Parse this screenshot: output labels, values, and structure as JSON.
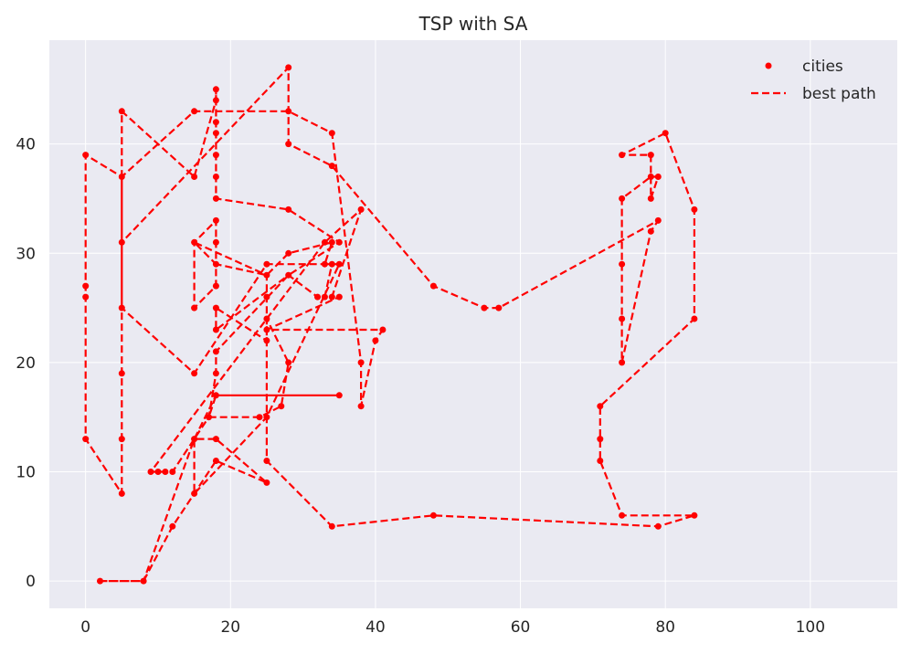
{
  "chart_data": {
    "type": "line",
    "title": "TSP with SA",
    "xlabel": "",
    "ylabel": "",
    "xlim": [
      -5,
      112
    ],
    "ylim": [
      -2.5,
      49.5
    ],
    "x_ticks": [
      0,
      20,
      40,
      60,
      80,
      100
    ],
    "y_ticks": [
      0,
      10,
      20,
      30,
      40
    ],
    "grid": true,
    "legend": {
      "position": "top-right",
      "entries": [
        "cities",
        "best path"
      ]
    },
    "colors": {
      "series": "#ff0000",
      "plot_background": "#eaeaf2",
      "grid": "#ffffff"
    },
    "series": [
      {
        "name": "best path",
        "style": "dashed",
        "marker": "dot",
        "points": [
          [
            2,
            0
          ],
          [
            8,
            0
          ],
          [
            12,
            5
          ],
          [
            15,
            8
          ],
          [
            18,
            11
          ],
          [
            25,
            9
          ],
          [
            18,
            13
          ],
          [
            15,
            13
          ],
          [
            15,
            8
          ],
          [
            25,
            15
          ],
          [
            35,
            29
          ],
          [
            25,
            29
          ],
          [
            15,
            19
          ],
          [
            5,
            25
          ],
          [
            5,
            31
          ],
          [
            5,
            37
          ],
          [
            0,
            39
          ],
          [
            0,
            27
          ],
          [
            0,
            26
          ],
          [
            0,
            13
          ],
          [
            5,
            8
          ],
          [
            5,
            13
          ],
          [
            5,
            19
          ],
          [
            5,
            25
          ],
          [
            5,
            37
          ],
          [
            5,
            43
          ],
          [
            15,
            37
          ],
          [
            18,
            44
          ],
          [
            18,
            45
          ],
          [
            18,
            42
          ],
          [
            18,
            41
          ],
          [
            18,
            39
          ],
          [
            18,
            37
          ],
          [
            18,
            35
          ],
          [
            28,
            34
          ],
          [
            35,
            31
          ],
          [
            28,
            28
          ],
          [
            18,
            21
          ],
          [
            18,
            19
          ],
          [
            17,
            15
          ],
          [
            12,
            10
          ],
          [
            11,
            10
          ],
          [
            10,
            10
          ],
          [
            9,
            10
          ],
          [
            33,
            31
          ],
          [
            38,
            34
          ],
          [
            34,
            26
          ],
          [
            35,
            26
          ],
          [
            25,
            23
          ],
          [
            41,
            23
          ],
          [
            40,
            22
          ],
          [
            38,
            16
          ],
          [
            38,
            20
          ],
          [
            34,
            41
          ],
          [
            28,
            43
          ],
          [
            15,
            43
          ],
          [
            5,
            37
          ],
          [
            5,
            31
          ],
          [
            28,
            47
          ],
          [
            28,
            43
          ],
          [
            28,
            40
          ],
          [
            34,
            38
          ],
          [
            48,
            27
          ],
          [
            55,
            25
          ],
          [
            57,
            25
          ],
          [
            79,
            33
          ],
          [
            78,
            32
          ],
          [
            74,
            20
          ],
          [
            74,
            24
          ],
          [
            74,
            29
          ],
          [
            74,
            35
          ],
          [
            78,
            37
          ],
          [
            79,
            37
          ],
          [
            78,
            35
          ],
          [
            78,
            39
          ],
          [
            74,
            39
          ],
          [
            80,
            41
          ],
          [
            84,
            34
          ],
          [
            84,
            24
          ],
          [
            71,
            16
          ],
          [
            71,
            13
          ],
          [
            71,
            11
          ],
          [
            74,
            6
          ],
          [
            84,
            6
          ],
          [
            79,
            5
          ],
          [
            48,
            6
          ],
          [
            34,
            5
          ],
          [
            25,
            11
          ],
          [
            25,
            26
          ],
          [
            25,
            28
          ],
          [
            15,
            31
          ],
          [
            18,
            29
          ],
          [
            18,
            27
          ],
          [
            15,
            25
          ],
          [
            15,
            31
          ],
          [
            18,
            33
          ],
          [
            18,
            31
          ],
          [
            18,
            29
          ],
          [
            25,
            28
          ],
          [
            28,
            30
          ],
          [
            34,
            31
          ],
          [
            33,
            29
          ],
          [
            34,
            29
          ],
          [
            33,
            26
          ],
          [
            32,
            26
          ],
          [
            28,
            28
          ],
          [
            18,
            23
          ],
          [
            18,
            25
          ],
          [
            25,
            22
          ],
          [
            25,
            24
          ],
          [
            28,
            20
          ],
          [
            27,
            16
          ],
          [
            24,
            15
          ],
          [
            17,
            15
          ],
          [
            18,
            17
          ],
          [
            35,
            17
          ],
          [
            18,
            17
          ],
          [
            15,
            13
          ],
          [
            8,
            0
          ],
          [
            2,
            0
          ]
        ]
      }
    ]
  }
}
